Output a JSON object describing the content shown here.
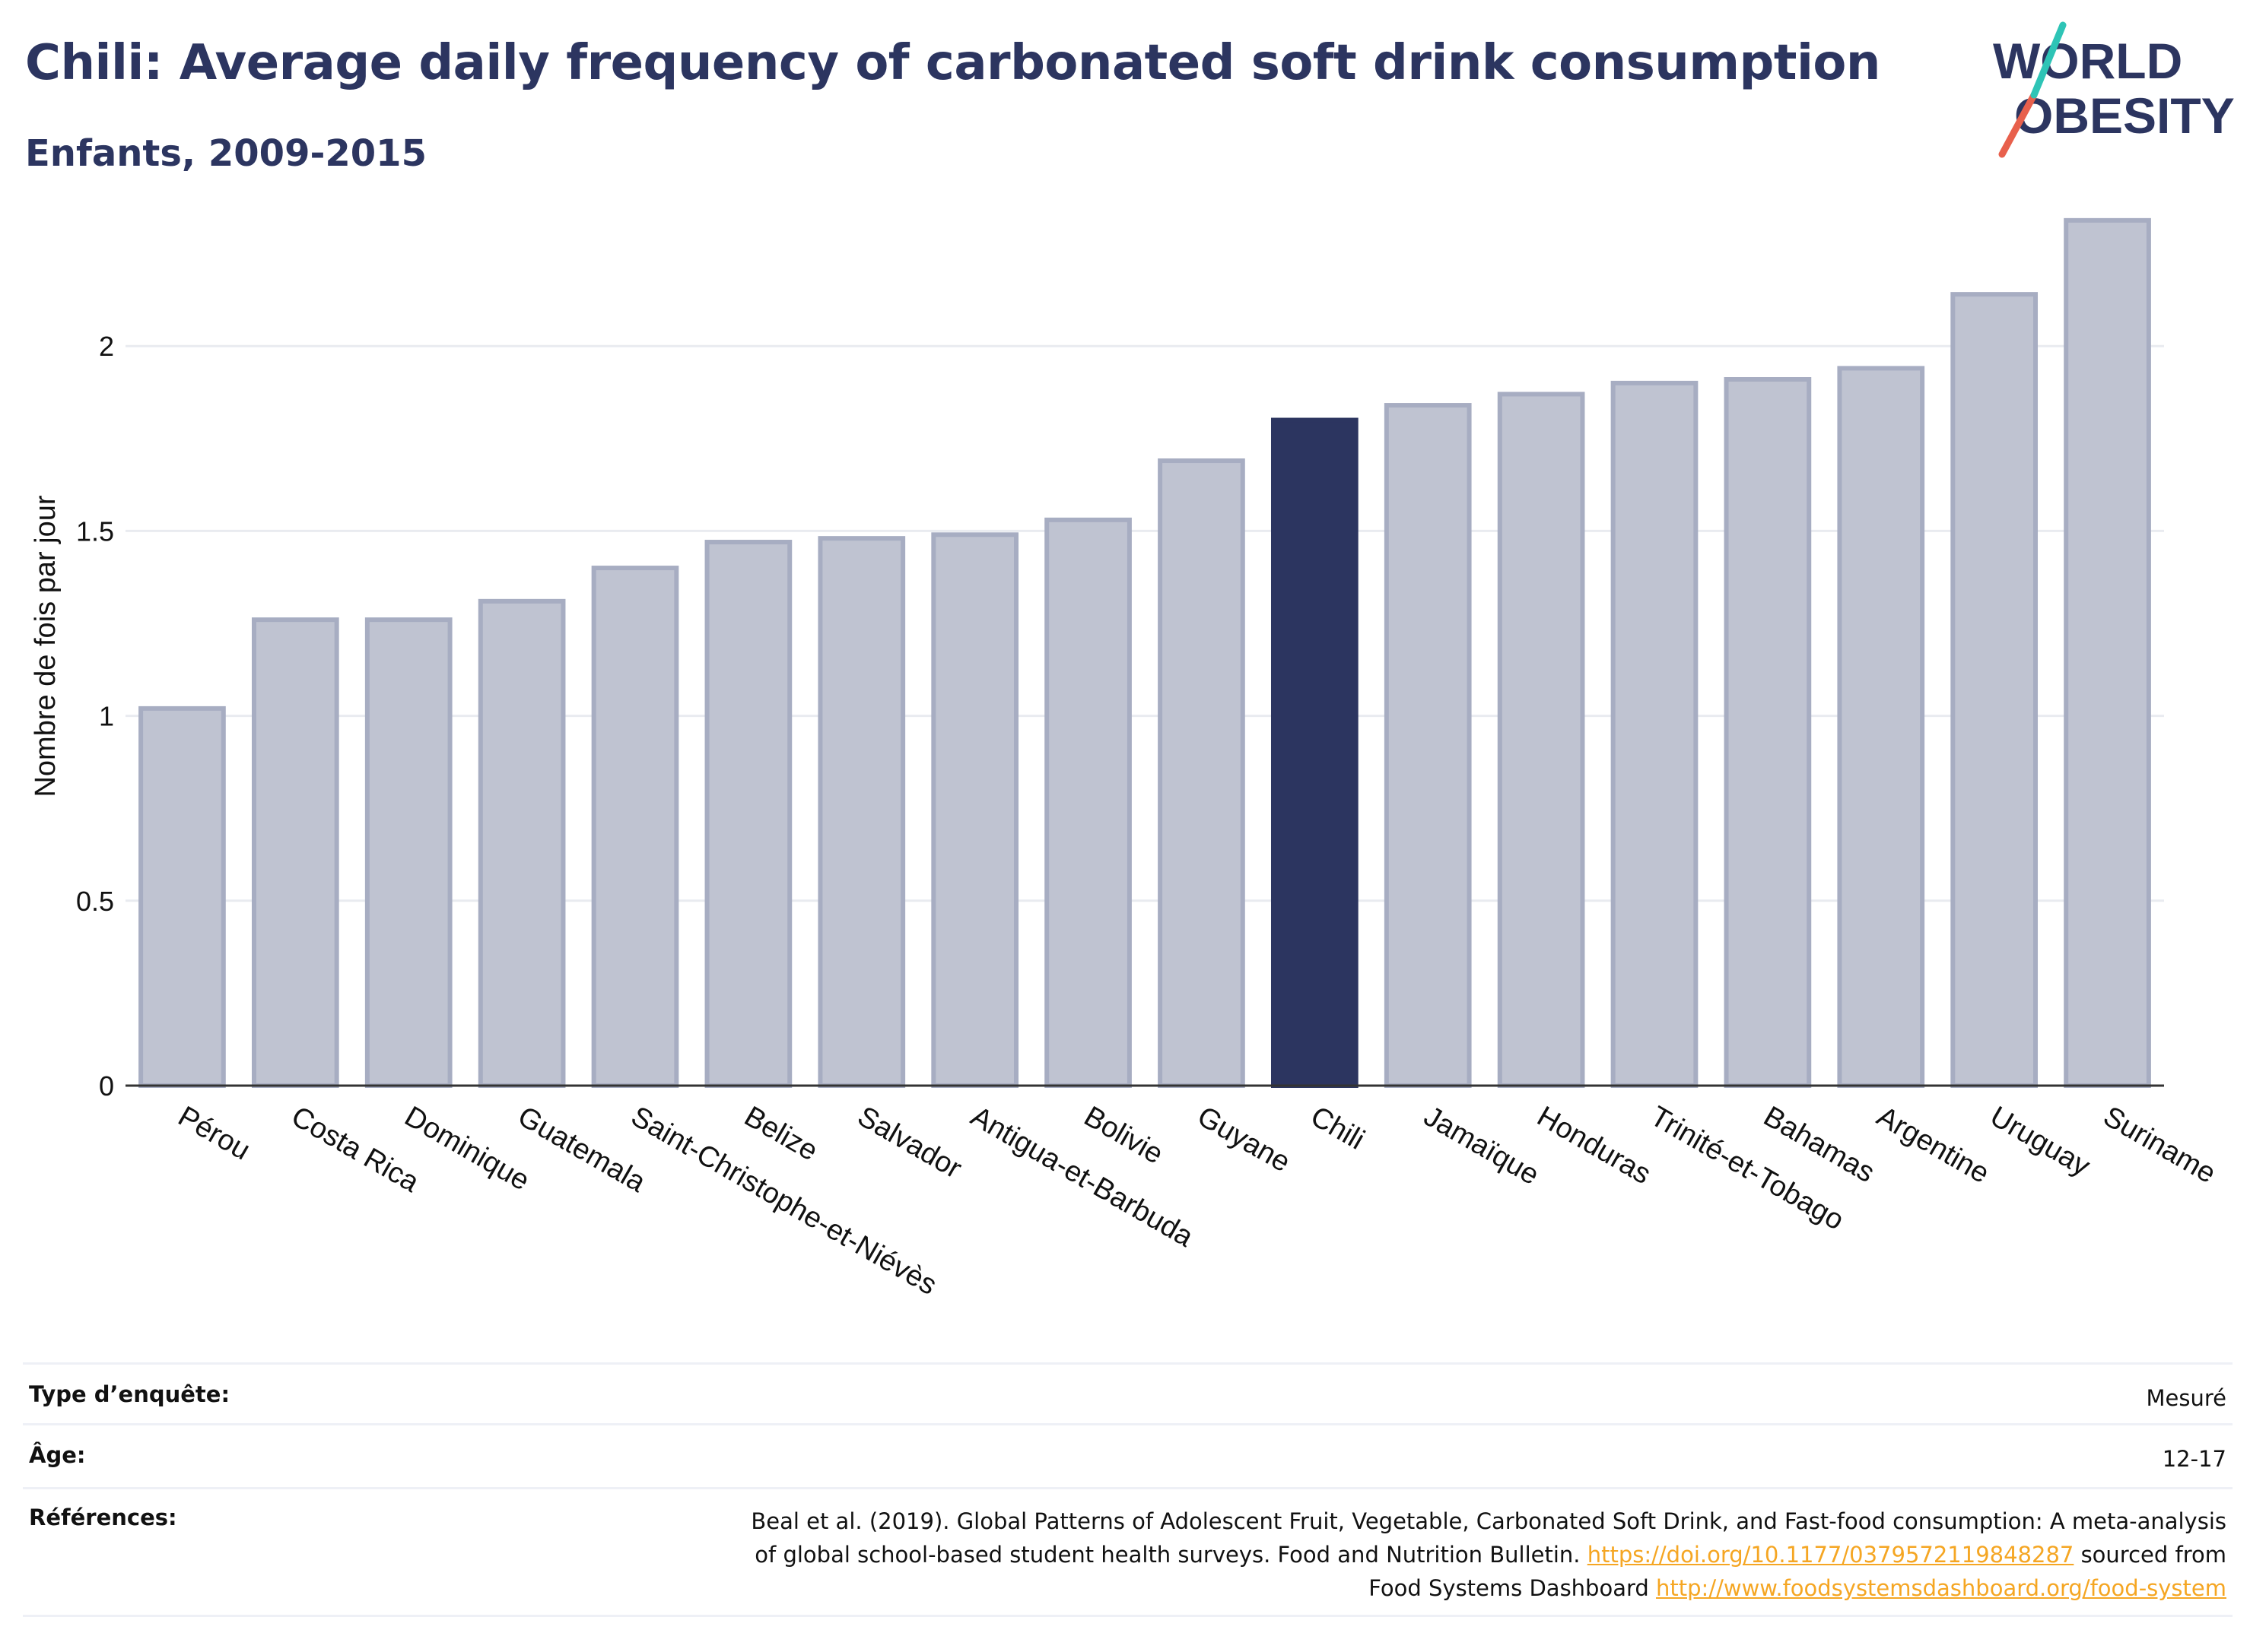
{
  "header": {
    "title": "Chili: Average daily frequency of carbonated soft drink consumption",
    "subtitle": "Enfants, 2009-2015"
  },
  "logo": {
    "line1": "WORLD",
    "line2": "OBESITY"
  },
  "colors": {
    "title": "#2c3560",
    "bar": "#bfc3d1",
    "bar_outline": "#a7adc2",
    "highlight": "#2c3560",
    "grid": "#e9ebf0",
    "link": "#f5a623",
    "logo_teal": "#2ec4b6",
    "logo_red": "#e8604c"
  },
  "chart_data": {
    "type": "bar",
    "title": "",
    "xlabel": "",
    "ylabel": "Nombre de fois par jour",
    "ylim": [
      0,
      2.35
    ],
    "yticks": [
      0,
      0.5,
      1,
      1.5,
      2
    ],
    "ytick_labels": [
      "0",
      "0.5",
      "1",
      "1.5",
      "2"
    ],
    "grid": true,
    "highlight_category": "Chili",
    "categories": [
      "Pérou",
      "Costa Rica",
      "Dominique",
      "Guatemala",
      "Saint-Christophe-et-Niévès",
      "Belize",
      "Salvador",
      "Antigua-et-Barbuda",
      "Bolivie",
      "Guyane",
      "Chili",
      "Jamaïque",
      "Honduras",
      "Trinité-et-Tobago",
      "Bahamas",
      "Argentine",
      "Uruguay",
      "Suriname"
    ],
    "values": [
      1.02,
      1.26,
      1.26,
      1.31,
      1.4,
      1.47,
      1.48,
      1.49,
      1.53,
      1.69,
      1.8,
      1.84,
      1.87,
      1.9,
      1.91,
      1.94,
      2.14,
      2.34
    ]
  },
  "info": {
    "survey_label": "Type d’enquête:",
    "survey_value": "Mesuré",
    "age_label": "Âge:",
    "age_value": "12-17",
    "refs_label": "Références:",
    "refs_text1": "Beal et al. (2019). Global Patterns of Adolescent Fruit, Vegetable, Carbonated Soft Drink, and Fast-food consumption: A meta-analysis",
    "refs_text2": "of global school-based student health surveys. Food and Nutrition Bulletin. ",
    "refs_link1": "https://doi.org/10.1177/0379572119848287",
    "refs_text3": " sourced from",
    "refs_text4": "Food Systems Dashboard ",
    "refs_link2": "http://www.foodsystemsdashboard.org/food-system"
  }
}
